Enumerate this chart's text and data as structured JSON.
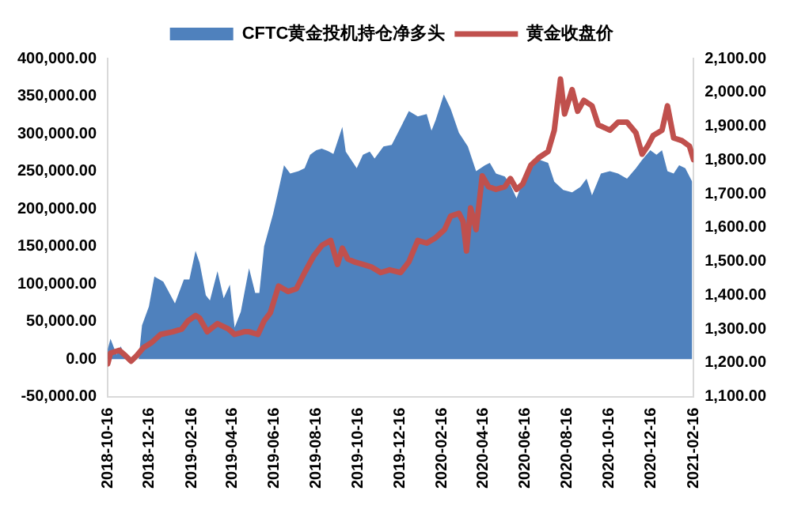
{
  "chart_data": {
    "type": "area",
    "legend": "top",
    "xlim": [
      "2018-10-16",
      "2021-02-16"
    ],
    "xticks": [
      "2018-10-16",
      "2018-12-16",
      "2019-02-16",
      "2019-04-16",
      "2019-06-16",
      "2019-08-16",
      "2019-10-16",
      "2019-12-16",
      "2020-02-16",
      "2020-04-16",
      "2020-06-16",
      "2020-08-16",
      "2020-10-16",
      "2020-12-16",
      "2021-02-16"
    ],
    "ylim": [
      -50000,
      400000
    ],
    "yticks": [
      {
        "value": -50000,
        "label": "-50,000.00"
      },
      {
        "value": 0,
        "label": "0.00"
      },
      {
        "value": 50000,
        "label": "50,000.00"
      },
      {
        "value": 100000,
        "label": "100,000.00"
      },
      {
        "value": 150000,
        "label": "150,000.00"
      },
      {
        "value": 200000,
        "label": "200,000.00"
      },
      {
        "value": 250000,
        "label": "250,000.00"
      },
      {
        "value": 300000,
        "label": "300,000.00"
      },
      {
        "value": 350000,
        "label": "350,000.00"
      },
      {
        "value": 400000,
        "label": "400,000.00"
      }
    ],
    "y2lim": [
      1100,
      2100
    ],
    "y2ticks": [
      {
        "value": 1100,
        "label": "1,100.00"
      },
      {
        "value": 1200,
        "label": "1,200.00"
      },
      {
        "value": 1300,
        "label": "1,300.00"
      },
      {
        "value": 1400,
        "label": "1,400.00"
      },
      {
        "value": 1500,
        "label": "1,500.00"
      },
      {
        "value": 1600,
        "label": "1,600.00"
      },
      {
        "value": 1700,
        "label": "1,700.00"
      },
      {
        "value": 1800,
        "label": "1,800.00"
      },
      {
        "value": 1900,
        "label": "1,900.00"
      },
      {
        "value": 2000,
        "label": "2,000.00"
      },
      {
        "value": 2100,
        "label": "2,100.00"
      }
    ],
    "grid": false,
    "series": [
      {
        "name": "CFTC黄金投机持仓净多头",
        "color": "#4f81bd",
        "x": [
          "2018-10-16",
          "2018-10-20",
          "2018-10-29",
          "2018-11-04",
          "2018-11-11",
          "2018-11-19",
          "2018-11-30",
          "2018-12-05",
          "2018-12-15",
          "2018-12-23",
          "2019-01-05",
          "2019-01-22",
          "2019-02-04",
          "2019-02-12",
          "2019-02-21",
          "2019-02-27",
          "2019-03-08",
          "2019-03-14",
          "2019-03-25",
          "2019-04-03",
          "2019-04-12",
          "2019-04-19",
          "2019-04-28",
          "2019-05-10",
          "2019-05-19",
          "2019-05-25",
          "2019-06-01",
          "2019-06-14",
          "2019-06-22",
          "2019-06-30",
          "2019-07-09",
          "2019-07-21",
          "2019-07-30",
          "2019-08-07",
          "2019-08-16",
          "2019-08-24",
          "2019-09-02",
          "2019-09-10",
          "2019-09-23",
          "2019-09-28",
          "2019-10-14",
          "2019-10-23",
          "2019-11-02",
          "2019-11-09",
          "2019-11-22",
          "2019-12-04",
          "2019-12-29",
          "2020-01-11",
          "2020-01-24",
          "2020-01-31",
          "2020-02-06",
          "2020-02-18",
          "2020-02-28",
          "2020-03-11",
          "2020-03-24",
          "2020-04-05",
          "2020-04-18",
          "2020-04-25",
          "2020-05-04",
          "2020-05-17",
          "2020-05-25",
          "2020-06-03",
          "2020-06-12",
          "2020-06-24",
          "2020-07-07",
          "2020-07-19",
          "2020-07-28",
          "2020-08-10",
          "2020-08-23",
          "2020-09-04",
          "2020-09-13",
          "2020-09-21",
          "2020-10-04",
          "2020-10-17",
          "2020-10-29",
          "2020-11-11",
          "2020-11-24",
          "2020-12-03",
          "2020-12-15",
          "2020-12-24",
          "2021-01-01",
          "2021-01-09",
          "2021-01-18",
          "2021-01-26",
          "2021-02-04",
          "2021-02-14"
        ],
        "values": [
          13000,
          27000,
          6000,
          17000,
          2000,
          -2000,
          0,
          45000,
          70000,
          110000,
          103000,
          74000,
          106000,
          106000,
          144000,
          128000,
          85000,
          78000,
          117000,
          81000,
          99000,
          42000,
          63000,
          121000,
          88000,
          88000,
          150000,
          193000,
          225000,
          258000,
          247000,
          250000,
          254000,
          272000,
          278000,
          280000,
          277000,
          273000,
          309000,
          276000,
          254000,
          272000,
          276000,
          267000,
          283000,
          285000,
          330000,
          323000,
          326000,
          304000,
          318000,
          352000,
          333000,
          301000,
          283000,
          250000,
          258000,
          261000,
          247000,
          243000,
          232000,
          214000,
          236000,
          254000,
          265000,
          261000,
          236000,
          225000,
          222000,
          229000,
          240000,
          218000,
          247000,
          250000,
          247000,
          240000,
          254000,
          265000,
          278000,
          272000,
          278000,
          250000,
          247000,
          258000,
          254000,
          236000
        ]
      },
      {
        "name": "黄金收盘价",
        "type": "line",
        "axis": "y2",
        "color": "#c0504d",
        "marker": "none",
        "line_style": "solid",
        "x": [
          "2018-10-16",
          "2018-10-20",
          "2018-11-02",
          "2018-11-11",
          "2018-11-19",
          "2018-11-27",
          "2018-12-07",
          "2018-12-19",
          "2019-01-01",
          "2019-01-19",
          "2019-02-01",
          "2019-02-10",
          "2019-02-21",
          "2019-02-27",
          "2019-03-10",
          "2019-03-25",
          "2019-04-10",
          "2019-04-19",
          "2019-05-03",
          "2019-05-10",
          "2019-05-23",
          "2019-06-01",
          "2019-06-10",
          "2019-06-22",
          "2019-07-06",
          "2019-07-18",
          "2019-07-30",
          "2019-08-12",
          "2019-08-24",
          "2019-09-06",
          "2019-09-16",
          "2019-09-23",
          "2019-10-01",
          "2019-10-10",
          "2019-10-23",
          "2019-11-05",
          "2019-11-18",
          "2019-12-01",
          "2019-12-17",
          "2019-12-29",
          "2020-01-11",
          "2020-01-24",
          "2020-02-06",
          "2020-02-19",
          "2020-02-28",
          "2020-03-11",
          "2020-03-17",
          "2020-03-22",
          "2020-03-28",
          "2020-04-05",
          "2020-04-14",
          "2020-04-23",
          "2020-05-04",
          "2020-05-17",
          "2020-05-25",
          "2020-06-03",
          "2020-06-12",
          "2020-06-24",
          "2020-07-07",
          "2020-07-19",
          "2020-07-28",
          "2020-08-06",
          "2020-08-12",
          "2020-08-23",
          "2020-08-31",
          "2020-09-09",
          "2020-09-21",
          "2020-09-30",
          "2020-10-17",
          "2020-10-29",
          "2020-11-11",
          "2020-11-24",
          "2020-12-03",
          "2020-12-11",
          "2020-12-19",
          "2021-01-01",
          "2021-01-09",
          "2021-01-18",
          "2021-01-30",
          "2021-02-10",
          "2021-02-16"
        ],
        "values": [
          1197,
          1229,
          1237,
          1221,
          1205,
          1221,
          1245,
          1260,
          1284,
          1292,
          1300,
          1324,
          1340,
          1332,
          1292,
          1316,
          1300,
          1284,
          1292,
          1292,
          1284,
          1324,
          1348,
          1427,
          1411,
          1419,
          1467,
          1515,
          1547,
          1562,
          1491,
          1539,
          1507,
          1499,
          1491,
          1483,
          1467,
          1475,
          1467,
          1499,
          1562,
          1554,
          1570,
          1594,
          1634,
          1642,
          1618,
          1531,
          1658,
          1594,
          1753,
          1721,
          1713,
          1721,
          1745,
          1713,
          1729,
          1785,
          1809,
          1825,
          1888,
          2039,
          1936,
          2008,
          1944,
          1976,
          1960,
          1904,
          1888,
          1912,
          1912,
          1880,
          1817,
          1841,
          1872,
          1888,
          1960,
          1865,
          1857,
          1841,
          1801
        ]
      }
    ]
  }
}
